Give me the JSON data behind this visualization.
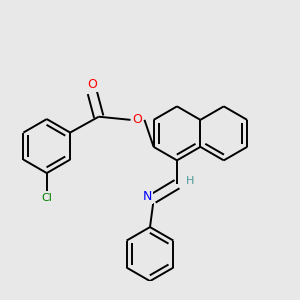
{
  "background_color": "#e8e8e8",
  "bond_color": "#000000",
  "atom_colors": {
    "O": "#ff0000",
    "N": "#0000ff",
    "Cl": "#008000",
    "H": "#4a9a9a",
    "C": "#000000"
  },
  "figsize": [
    3.0,
    3.0
  ],
  "dpi": 100
}
